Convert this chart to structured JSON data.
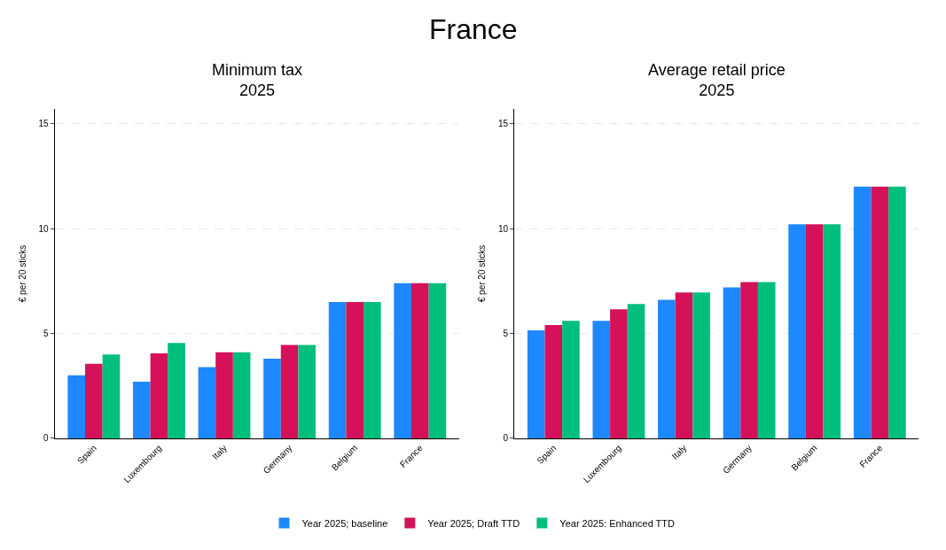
{
  "chart_data": [
    {
      "type": "bar",
      "title": "Minimum tax\n2025",
      "annotations": [
        "France"
      ],
      "ylabel": "€ per 20 sticks",
      "categories": [
        "Spain",
        "Luxembourg",
        "Italy",
        "Germany",
        "Belgium",
        "France"
      ],
      "series": [
        {
          "name": "Year 2025; baseline",
          "color": "#1e88ff",
          "values": [
            3.0,
            2.7,
            3.4,
            3.8,
            6.5,
            7.4
          ]
        },
        {
          "name": "Year 2025; Draft TTD",
          "color": "#d41159",
          "values": [
            3.55,
            4.05,
            4.1,
            4.45,
            6.5,
            7.4
          ]
        },
        {
          "name": "Year 2025: Enhanced TTD",
          "color": "#00bf7d",
          "values": [
            4.0,
            4.55,
            4.1,
            4.45,
            6.5,
            7.4
          ]
        }
      ],
      "ylim": [
        0,
        15.7
      ],
      "yticks": [
        0,
        5,
        10,
        15
      ],
      "grid": "y",
      "legend": "bottom"
    },
    {
      "type": "bar",
      "title": "Average retail price\n2025",
      "ylabel": "€ per 20 sticks",
      "categories": [
        "Spain",
        "Luxembourg",
        "Italy",
        "Germany",
        "Belgium",
        "France"
      ],
      "series": [
        {
          "color": "#1e88ff",
          "values": [
            5.15,
            5.6,
            6.6,
            7.2,
            10.2,
            12.0
          ]
        },
        {
          "color": "#d41159",
          "values": [
            5.4,
            6.15,
            6.95,
            7.45,
            10.2,
            12.0
          ]
        },
        {
          "color": "#00bf7d",
          "values": [
            5.6,
            6.4,
            6.95,
            7.45,
            10.2,
            12.0
          ]
        }
      ],
      "ylim": [
        0,
        15.7
      ],
      "yticks": [
        0,
        5,
        10,
        15
      ],
      "grid": "y"
    }
  ]
}
